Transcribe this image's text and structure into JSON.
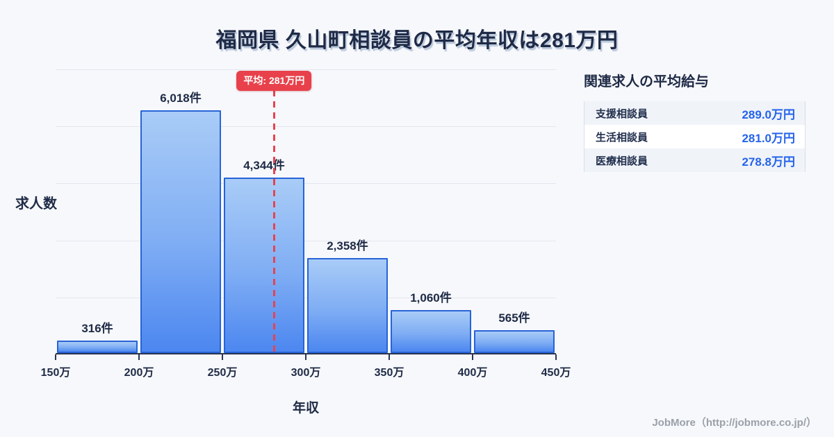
{
  "title": "福岡県 久山町相談員の平均年収は281万円",
  "chart_data": {
    "type": "bar",
    "subtype": "histogram",
    "title": "福岡県 久山町相談員の平均年収は281万円",
    "xlabel": "年収",
    "ylabel": "求人数",
    "bin_edges": [
      150,
      200,
      250,
      300,
      350,
      400,
      450
    ],
    "bin_edge_labels": [
      "150万",
      "200万",
      "250万",
      "300万",
      "350万",
      "400万",
      "450万"
    ],
    "values": [
      316,
      6018,
      4344,
      2358,
      1060,
      565
    ],
    "bar_labels": [
      "316件",
      "6,018件",
      "4,344件",
      "2,358件",
      "1,060件",
      "565件"
    ],
    "ylim": [
      0,
      7070
    ],
    "grid": "horizontal",
    "gridline_divisions": 5,
    "average_line": {
      "x_value": 281,
      "label": "平均: 281万円"
    },
    "colors": {
      "bar_top": "#a9ccf7",
      "bar_bottom": "#4c87f0",
      "bar_border": "#2763d8",
      "average_red": "#e8414b",
      "text_navy": "#1e2a46",
      "gridline": "#e3e7ef",
      "background": "#f7f8fb",
      "value_blue": "#2563eb"
    }
  },
  "related": {
    "header": "関連求人の平均給与",
    "rows": [
      {
        "label": "支援相談員",
        "value": "289.0万円"
      },
      {
        "label": "生活相談員",
        "value": "281.0万円"
      },
      {
        "label": "医療相談員",
        "value": "278.8万円"
      }
    ]
  },
  "footer": {
    "credit": "JobMore（http://jobmore.co.jp/）"
  }
}
